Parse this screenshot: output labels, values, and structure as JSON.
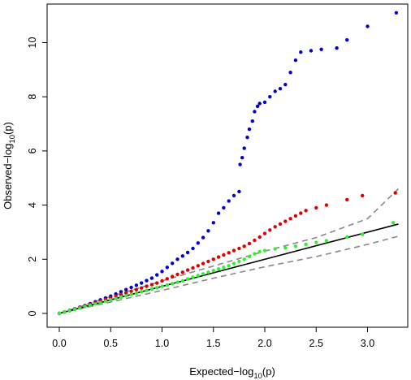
{
  "chart_data": {
    "type": "scatter",
    "title": "",
    "xlabel": {
      "main": "Expected",
      "minus": "−",
      "log": "log",
      "sub": "10",
      "arg": "(p)"
    },
    "ylabel": {
      "main": "Observed",
      "minus": "−",
      "log": "log",
      "sub": "10",
      "arg": "(p)"
    },
    "xlim": [
      0,
      3.3
    ],
    "ylim": [
      0,
      11.1
    ],
    "x_ticks": [
      0,
      0.5,
      1,
      1.5,
      2,
      2.5,
      3
    ],
    "x_tick_labels": [
      "0.0",
      "0.5",
      "1.0",
      "1.5",
      "2.0",
      "2.5",
      "3.0"
    ],
    "y_ticks": [
      0,
      2,
      4,
      6,
      8,
      10
    ],
    "y_tick_labels": [
      "0",
      "2",
      "4",
      "6",
      "8",
      "10"
    ],
    "grid": false,
    "legend": "none",
    "reference_line": {
      "from": [
        0,
        0
      ],
      "to": [
        3.3,
        3.3
      ],
      "color": "#000000"
    },
    "confidence_bands": {
      "color": "#888888",
      "upper": [
        [
          0,
          0
        ],
        [
          0.5,
          0.62
        ],
        [
          1,
          1.2
        ],
        [
          1.5,
          1.75
        ],
        [
          2,
          2.3
        ],
        [
          2.5,
          2.8
        ],
        [
          3,
          3.5
        ],
        [
          3.3,
          4.6
        ]
      ],
      "lower": [
        [
          0,
          0
        ],
        [
          0.5,
          0.42
        ],
        [
          1,
          0.85
        ],
        [
          1.5,
          1.3
        ],
        [
          2,
          1.72
        ],
        [
          2.5,
          2.1
        ],
        [
          3,
          2.55
        ],
        [
          3.3,
          2.85
        ]
      ]
    },
    "series": [
      {
        "color": "#0000cc",
        "points": [
          [
            0,
            0
          ],
          [
            0.05,
            0.05
          ],
          [
            0.1,
            0.11
          ],
          [
            0.15,
            0.17
          ],
          [
            0.2,
            0.23
          ],
          [
            0.25,
            0.29
          ],
          [
            0.3,
            0.36
          ],
          [
            0.35,
            0.43
          ],
          [
            0.4,
            0.5
          ],
          [
            0.45,
            0.57
          ],
          [
            0.5,
            0.64
          ],
          [
            0.55,
            0.72
          ],
          [
            0.6,
            0.8
          ],
          [
            0.65,
            0.88
          ],
          [
            0.7,
            0.96
          ],
          [
            0.75,
            1.04
          ],
          [
            0.8,
            1.12
          ],
          [
            0.85,
            1.21
          ],
          [
            0.9,
            1.3
          ],
          [
            0.95,
            1.42
          ],
          [
            1.0,
            1.55
          ],
          [
            1.05,
            1.7
          ],
          [
            1.1,
            1.85
          ],
          [
            1.15,
            2.0
          ],
          [
            1.2,
            2.12
          ],
          [
            1.25,
            2.25
          ],
          [
            1.3,
            2.4
          ],
          [
            1.35,
            2.6
          ],
          [
            1.4,
            2.8
          ],
          [
            1.45,
            3.05
          ],
          [
            1.5,
            3.35
          ],
          [
            1.55,
            3.7
          ],
          [
            1.6,
            3.9
          ],
          [
            1.65,
            4.15
          ],
          [
            1.7,
            4.35
          ],
          [
            1.75,
            4.5
          ],
          [
            1.76,
            5.5
          ],
          [
            1.78,
            5.75
          ],
          [
            1.8,
            6.1
          ],
          [
            1.83,
            6.5
          ],
          [
            1.85,
            6.8
          ],
          [
            1.88,
            7.1
          ],
          [
            1.9,
            7.45
          ],
          [
            1.93,
            7.65
          ],
          [
            1.95,
            7.75
          ],
          [
            2.0,
            7.8
          ],
          [
            2.05,
            8.0
          ],
          [
            2.1,
            8.2
          ],
          [
            2.15,
            8.3
          ],
          [
            2.2,
            8.45
          ],
          [
            2.25,
            8.9
          ],
          [
            2.3,
            9.35
          ],
          [
            2.35,
            9.65
          ],
          [
            2.45,
            9.7
          ],
          [
            2.55,
            9.75
          ],
          [
            2.7,
            9.8
          ],
          [
            2.8,
            10.1
          ],
          [
            3.0,
            10.6
          ],
          [
            3.28,
            11.1
          ]
        ]
      },
      {
        "color": "#dd0000",
        "points": [
          [
            0,
            0
          ],
          [
            0.05,
            0.05
          ],
          [
            0.1,
            0.1
          ],
          [
            0.15,
            0.16
          ],
          [
            0.2,
            0.22
          ],
          [
            0.25,
            0.28
          ],
          [
            0.3,
            0.34
          ],
          [
            0.35,
            0.4
          ],
          [
            0.4,
            0.46
          ],
          [
            0.45,
            0.52
          ],
          [
            0.5,
            0.58
          ],
          [
            0.55,
            0.64
          ],
          [
            0.6,
            0.7
          ],
          [
            0.65,
            0.76
          ],
          [
            0.7,
            0.82
          ],
          [
            0.75,
            0.88
          ],
          [
            0.8,
            0.94
          ],
          [
            0.85,
            1.0
          ],
          [
            0.9,
            1.06
          ],
          [
            0.95,
            1.12
          ],
          [
            1.0,
            1.2
          ],
          [
            1.05,
            1.28
          ],
          [
            1.1,
            1.36
          ],
          [
            1.15,
            1.44
          ],
          [
            1.2,
            1.52
          ],
          [
            1.25,
            1.6
          ],
          [
            1.3,
            1.68
          ],
          [
            1.35,
            1.76
          ],
          [
            1.4,
            1.84
          ],
          [
            1.45,
            1.92
          ],
          [
            1.5,
            2.0
          ],
          [
            1.55,
            2.08
          ],
          [
            1.6,
            2.16
          ],
          [
            1.65,
            2.24
          ],
          [
            1.7,
            2.32
          ],
          [
            1.75,
            2.4
          ],
          [
            1.8,
            2.48
          ],
          [
            1.85,
            2.58
          ],
          [
            1.9,
            2.7
          ],
          [
            1.95,
            2.82
          ],
          [
            2.0,
            2.95
          ],
          [
            2.05,
            3.08
          ],
          [
            2.1,
            3.2
          ],
          [
            2.15,
            3.3
          ],
          [
            2.2,
            3.4
          ],
          [
            2.25,
            3.5
          ],
          [
            2.3,
            3.6
          ],
          [
            2.35,
            3.7
          ],
          [
            2.4,
            3.8
          ],
          [
            2.5,
            3.9
          ],
          [
            2.6,
            4.0
          ],
          [
            2.8,
            4.2
          ],
          [
            2.95,
            4.35
          ],
          [
            3.27,
            4.45
          ]
        ]
      },
      {
        "color": "#33ee33",
        "points": [
          [
            0,
            0
          ],
          [
            0.05,
            0.05
          ],
          [
            0.1,
            0.1
          ],
          [
            0.15,
            0.15
          ],
          [
            0.2,
            0.2
          ],
          [
            0.25,
            0.25
          ],
          [
            0.3,
            0.3
          ],
          [
            0.35,
            0.35
          ],
          [
            0.4,
            0.4
          ],
          [
            0.45,
            0.45
          ],
          [
            0.5,
            0.5
          ],
          [
            0.55,
            0.55
          ],
          [
            0.6,
            0.6
          ],
          [
            0.65,
            0.65
          ],
          [
            0.7,
            0.7
          ],
          [
            0.75,
            0.75
          ],
          [
            0.8,
            0.8
          ],
          [
            0.85,
            0.85
          ],
          [
            0.9,
            0.9
          ],
          [
            0.95,
            0.95
          ],
          [
            1.0,
            1.0
          ],
          [
            1.05,
            1.05
          ],
          [
            1.1,
            1.1
          ],
          [
            1.15,
            1.15
          ],
          [
            1.2,
            1.2
          ],
          [
            1.25,
            1.27
          ],
          [
            1.3,
            1.34
          ],
          [
            1.35,
            1.4
          ],
          [
            1.4,
            1.46
          ],
          [
            1.45,
            1.52
          ],
          [
            1.5,
            1.58
          ],
          [
            1.55,
            1.64
          ],
          [
            1.6,
            1.7
          ],
          [
            1.65,
            1.76
          ],
          [
            1.7,
            1.84
          ],
          [
            1.75,
            1.92
          ],
          [
            1.8,
            2.0
          ],
          [
            1.85,
            2.1
          ],
          [
            1.9,
            2.2
          ],
          [
            1.95,
            2.28
          ],
          [
            2.0,
            2.32
          ],
          [
            2.1,
            2.38
          ],
          [
            2.2,
            2.42
          ],
          [
            2.3,
            2.48
          ],
          [
            2.4,
            2.55
          ],
          [
            2.5,
            2.62
          ],
          [
            2.6,
            2.68
          ],
          [
            2.8,
            2.82
          ],
          [
            2.95,
            2.92
          ],
          [
            3.25,
            3.35
          ]
        ]
      }
    ]
  }
}
